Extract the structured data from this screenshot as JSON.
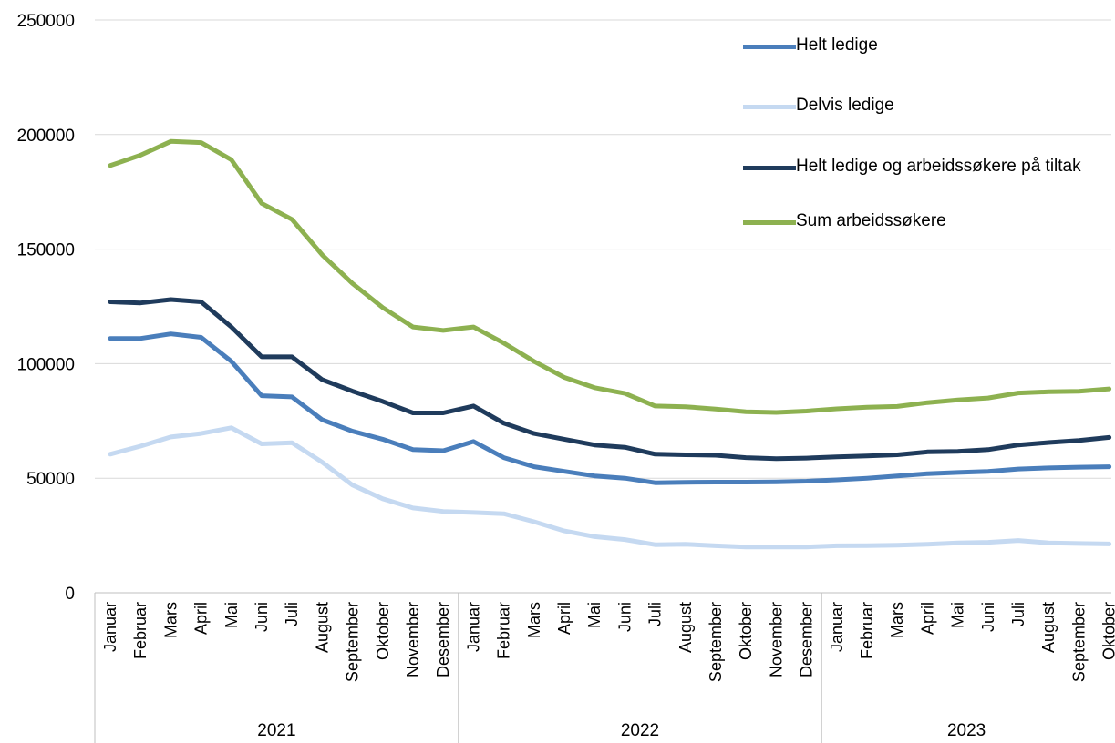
{
  "chart_data": {
    "type": "line",
    "y_ticks": [
      "0",
      "50000",
      "100000",
      "150000",
      "200000",
      "250000"
    ],
    "ylim": [
      0,
      250000
    ],
    "grid": true,
    "legend_position": "top-right",
    "years": [
      {
        "label": "2021",
        "months": [
          "Januar",
          "Februar",
          "Mars",
          "April",
          "Mai",
          "Juni",
          "Juli",
          "August",
          "September",
          "Oktober",
          "November",
          "Desember"
        ]
      },
      {
        "label": "2022",
        "months": [
          "Januar",
          "Februar",
          "Mars",
          "April",
          "Mai",
          "Juni",
          "Juli",
          "August",
          "September",
          "Oktober",
          "November",
          "Desember"
        ]
      },
      {
        "label": "2023",
        "months": [
          "Januar",
          "Februar",
          "Mars",
          "April",
          "Mai",
          "Juni",
          "Juli",
          "August",
          "September",
          "Oktober"
        ]
      }
    ],
    "series": [
      {
        "name": "Helt ledige",
        "color": "#4a7ebb",
        "values": [
          111000,
          111000,
          113000,
          111500,
          101000,
          86000,
          85500,
          75500,
          70500,
          67000,
          62500,
          62000,
          66000,
          59000,
          55000,
          53000,
          51000,
          50000,
          48000,
          48200,
          48300,
          48300,
          48400,
          48700,
          49300,
          50000,
          51000,
          52000,
          52500,
          53000,
          54000,
          54500,
          54800,
          55000
        ]
      },
      {
        "name": "Delvis ledige",
        "color": "#c5d9f1",
        "values": [
          60500,
          64000,
          68000,
          69500,
          72000,
          65000,
          65500,
          57000,
          47000,
          41000,
          37000,
          35500,
          35000,
          34500,
          31000,
          27000,
          24500,
          23200,
          21000,
          21200,
          20500,
          20000,
          20000,
          20000,
          20500,
          20600,
          20800,
          21200,
          21800,
          22000,
          22800,
          21800,
          21500,
          21300
        ]
      },
      {
        "name": "Helt ledige og arbeidssøkere på tiltak",
        "color": "#1f3b5c",
        "values": [
          127000,
          126500,
          128000,
          127000,
          116000,
          103000,
          103000,
          93000,
          88000,
          83500,
          78500,
          78500,
          81500,
          74000,
          69500,
          67000,
          64500,
          63500,
          60500,
          60200,
          60000,
          59000,
          58500,
          58800,
          59300,
          59700,
          60200,
          61500,
          61700,
          62500,
          64500,
          65600,
          66500,
          67800
        ]
      },
      {
        "name": "Sum arbeidssøkere",
        "color": "#8db150",
        "values": [
          186500,
          191000,
          197000,
          196500,
          189000,
          170000,
          163000,
          147500,
          135000,
          124500,
          116000,
          114500,
          116000,
          109000,
          101000,
          94000,
          89500,
          87000,
          81500,
          81200,
          80200,
          79000,
          78700,
          79300,
          80300,
          81000,
          81300,
          83000,
          84200,
          85000,
          87200,
          87700,
          87900,
          89000
        ]
      }
    ]
  }
}
